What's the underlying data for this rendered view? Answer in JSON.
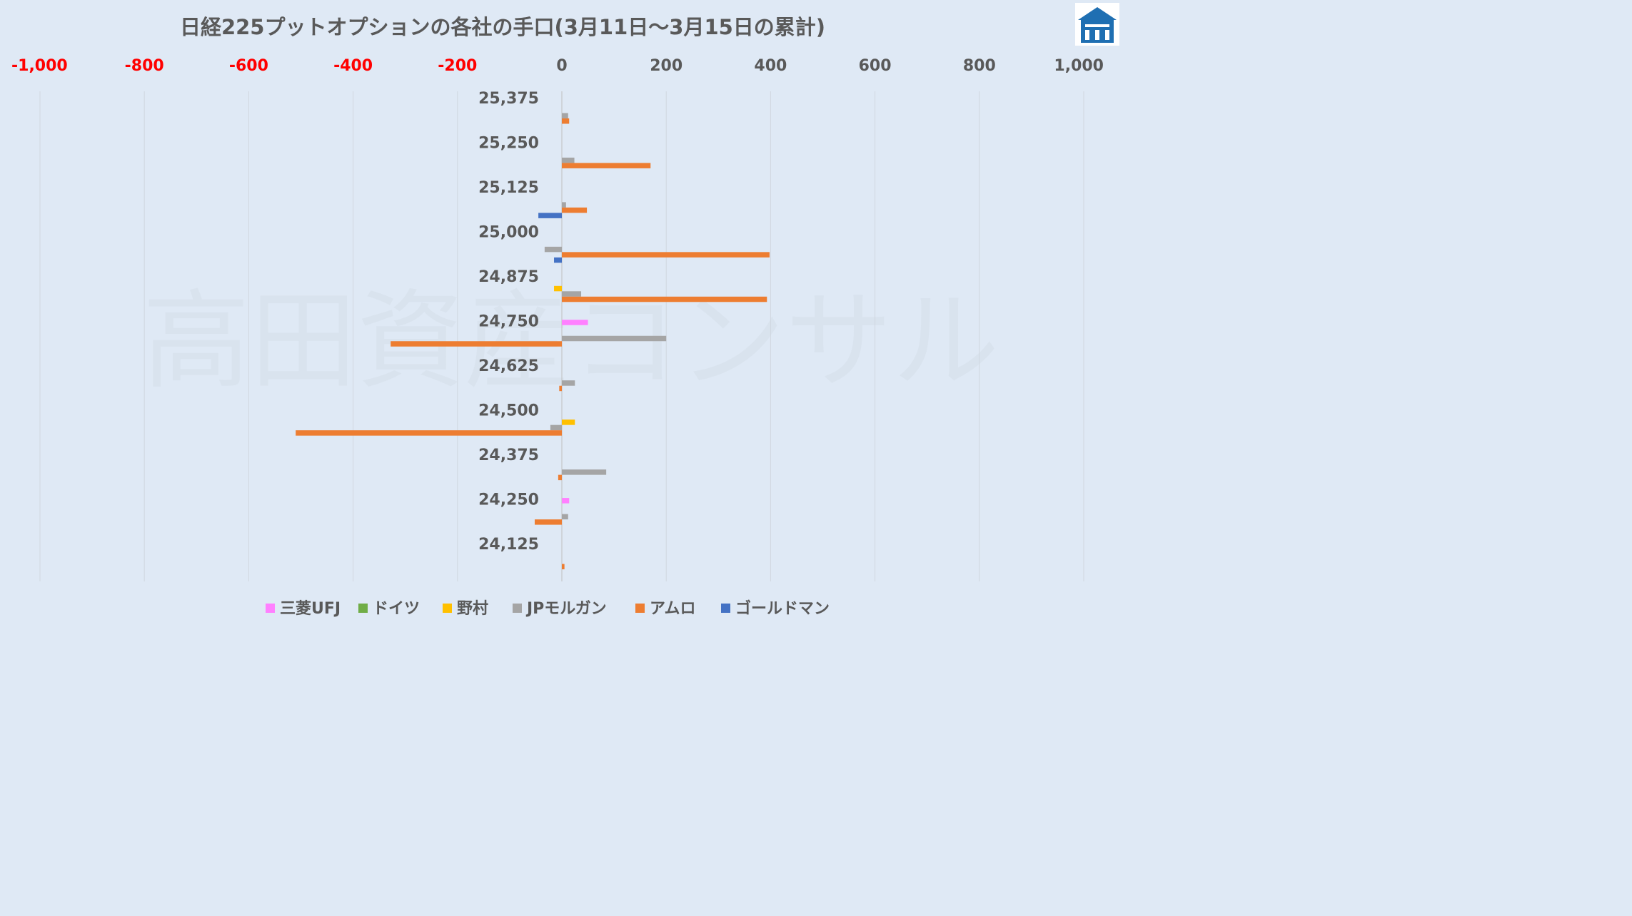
{
  "chart_data": {
    "type": "bar",
    "orientation": "horizontal",
    "title": "日経225プットオプションの各社の手口(3月11日～3月15日の累計)",
    "xlim": [
      -1000,
      1000
    ],
    "x_ticks": [
      -1000,
      -800,
      -600,
      -400,
      -200,
      0,
      200,
      400,
      600,
      800,
      1000
    ],
    "x_tick_labels": [
      "-1,000",
      "-800",
      "-600",
      "-400",
      "-200",
      "0",
      "200",
      "400",
      "600",
      "800",
      "1,000"
    ],
    "negative_tick_color": "#ff0000",
    "grid": true,
    "legend_position": "bottom",
    "categories": [
      "25,375",
      "25,250",
      "25,125",
      "25,000",
      "24,875",
      "24,750",
      "24,625",
      "24,500",
      "24,375",
      "24,250",
      "24,125"
    ],
    "series": [
      {
        "name": "三菱UFJ",
        "color": "#ff80ff",
        "values": [
          0,
          0,
          0,
          0,
          0,
          50,
          0,
          0,
          0,
          14,
          0
        ]
      },
      {
        "name": "ドイツ",
        "color": "#70ad47",
        "values": [
          0,
          0,
          0,
          0,
          0,
          0,
          0,
          0,
          0,
          0,
          0
        ]
      },
      {
        "name": "野村",
        "color": "#ffc000",
        "values": [
          0,
          0,
          0,
          0,
          -15,
          0,
          0,
          25,
          0,
          0,
          0
        ]
      },
      {
        "name": "JPモルガン",
        "color": "#a5a5a5",
        "values": [
          12,
          24,
          8,
          -33,
          37,
          200,
          25,
          -22,
          85,
          12,
          0
        ]
      },
      {
        "name": "アムロ",
        "color": "#ed7d31",
        "values": [
          14,
          170,
          48,
          398,
          393,
          -328,
          -5,
          -510,
          -7,
          -52,
          5
        ]
      },
      {
        "name": "ゴールドマン",
        "color": "#4472c4",
        "values": [
          0,
          0,
          -45,
          -15,
          0,
          0,
          0,
          0,
          0,
          0,
          0
        ]
      }
    ]
  },
  "watermark_text": "高田資産コンサル",
  "logo": {
    "name": "takata-logo",
    "color": "#1f6fb2"
  }
}
